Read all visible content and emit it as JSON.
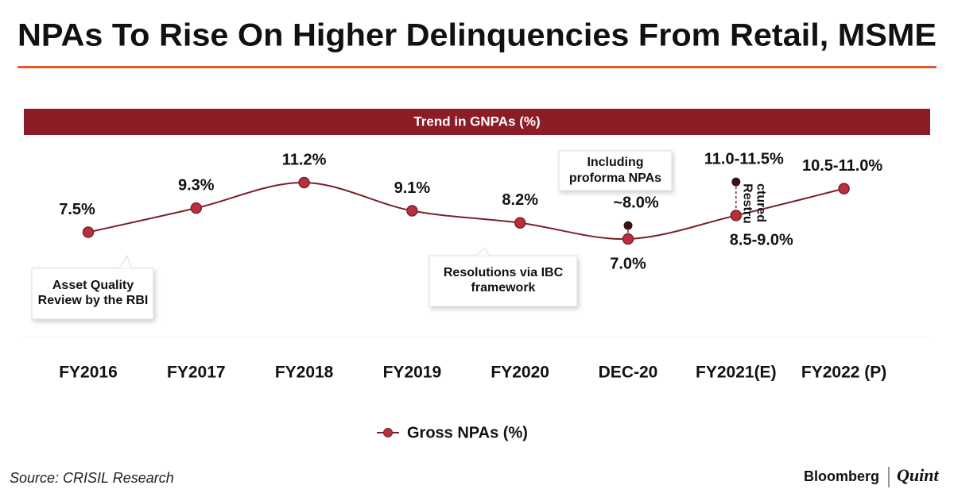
{
  "chart_data": {
    "type": "line",
    "title": "NPAs To Rise On Higher Delinquencies From Retail, MSME",
    "subtitle": "Trend in GNPAs (%)",
    "categories": [
      "FY2016",
      "FY2017",
      "FY2018",
      "FY2019",
      "FY2020",
      "DEC-20",
      "FY2021(E)",
      "FY2022 (P)"
    ],
    "series": [
      {
        "name": "Gross NPAs (%)",
        "color": "#7d1f2b",
        "values": [
          7.5,
          9.3,
          11.2,
          9.1,
          8.2,
          7.0,
          8.75,
          10.75
        ],
        "value_labels": [
          "7.5%",
          "9.3%",
          "11.2%",
          "9.1%",
          "8.2%",
          "7.0%",
          "8.5-9.0%",
          "10.5-11.0%"
        ]
      }
    ],
    "extra_points": {
      "color": "#3a0f16",
      "values": [
        null,
        null,
        null,
        null,
        null,
        8.0,
        11.25,
        null
      ],
      "value_labels": [
        null,
        null,
        null,
        null,
        null,
        "~8.0%",
        "11.0-11.5%",
        null
      ]
    },
    "annotations": [
      {
        "lines": [
          "Asset Quality",
          "Review by the RBI"
        ]
      },
      {
        "lines": [
          "Resolutions via IBC",
          "framework"
        ]
      },
      {
        "lines": [
          "Including",
          "proforma NPAs"
        ]
      },
      {
        "lines": [
          "Restru",
          "ctured"
        ]
      }
    ],
    "source": "Source: CRISIL Research",
    "brand": [
      "Bloomberg",
      "Quint"
    ]
  }
}
